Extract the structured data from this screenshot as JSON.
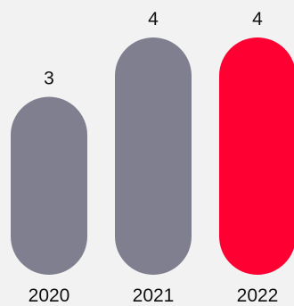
{
  "chart_data": {
    "type": "bar",
    "categories": [
      "2020",
      "2021",
      "2022"
    ],
    "values": [
      3,
      4,
      4
    ],
    "ylim": [
      0,
      4
    ],
    "data_labels": [
      "3",
      "4",
      "4"
    ],
    "title": "",
    "xlabel": "",
    "ylabel": "",
    "grid": false,
    "legend": "none",
    "colors": [
      "#7f7f8f",
      "#7f7f8f",
      "#ff0033"
    ]
  }
}
